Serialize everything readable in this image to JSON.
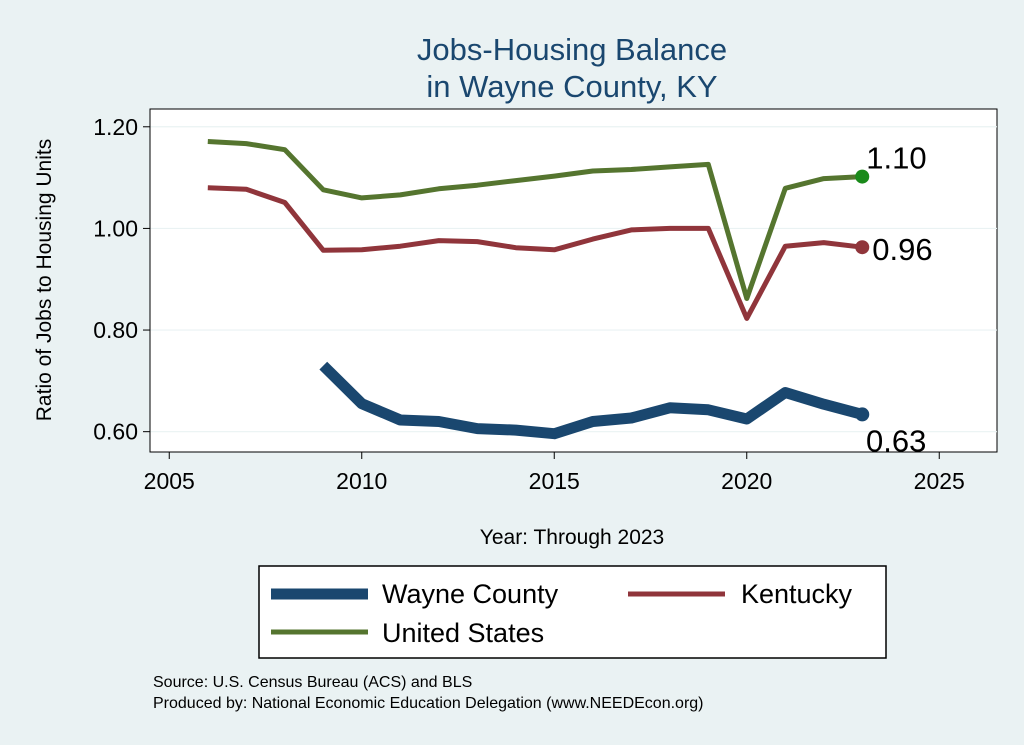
{
  "chart_data": {
    "type": "line",
    "title": [
      "Jobs-Housing Balance",
      "in Wayne County, KY"
    ],
    "xlabel": "Year: Through 2023",
    "ylabel": "Ratio of Jobs to Housing Units",
    "xlim": [
      2004.5,
      2026.5
    ],
    "ylim": [
      0.56,
      1.235
    ],
    "xticks": [
      2005,
      2010,
      2015,
      2020,
      2025
    ],
    "yticks": [
      0.6,
      0.8,
      1.0,
      1.2
    ],
    "ytick_labels": [
      "0.60",
      "0.80",
      "1.00",
      "1.20"
    ],
    "grid": "horizontal",
    "legend_position": "bottom",
    "series": [
      {
        "name": "Wayne County",
        "color": "#1a476f",
        "x": [
          2009,
          2010,
          2011,
          2012,
          2013,
          2014,
          2015,
          2016,
          2017,
          2018,
          2019,
          2020,
          2021,
          2022,
          2023
        ],
        "values": [
          0.73,
          0.655,
          0.623,
          0.62,
          0.606,
          0.603,
          0.596,
          0.62,
          0.627,
          0.647,
          0.643,
          0.625,
          0.677,
          0.654,
          0.634
        ],
        "end_label": "0.63"
      },
      {
        "name": "Kentucky",
        "color": "#90353b",
        "x": [
          2006,
          2007,
          2008,
          2009,
          2010,
          2011,
          2012,
          2013,
          2014,
          2015,
          2016,
          2017,
          2018,
          2019,
          2020,
          2021,
          2022,
          2023
        ],
        "values": [
          1.08,
          1.077,
          1.051,
          0.957,
          0.958,
          0.965,
          0.976,
          0.974,
          0.962,
          0.958,
          0.979,
          0.997,
          1.0,
          1.0,
          0.823,
          0.965,
          0.972,
          0.963
        ],
        "end_label": "0.96"
      },
      {
        "name": "United States",
        "color": "#55752f",
        "x": [
          2006,
          2007,
          2008,
          2009,
          2010,
          2011,
          2012,
          2013,
          2014,
          2015,
          2016,
          2017,
          2018,
          2019,
          2020,
          2021,
          2022,
          2023
        ],
        "values": [
          1.171,
          1.167,
          1.155,
          1.076,
          1.06,
          1.066,
          1.078,
          1.085,
          1.094,
          1.103,
          1.113,
          1.116,
          1.121,
          1.126,
          0.862,
          1.079,
          1.098,
          1.102
        ],
        "end_label": "1.10",
        "marker_color": "#1a8a1a"
      }
    ],
    "source_lines": [
      "Source: U.S. Census Bureau (ACS) and BLS",
      "Produced by: National Economic Education Delegation (www.NEEDEcon.org)"
    ]
  }
}
